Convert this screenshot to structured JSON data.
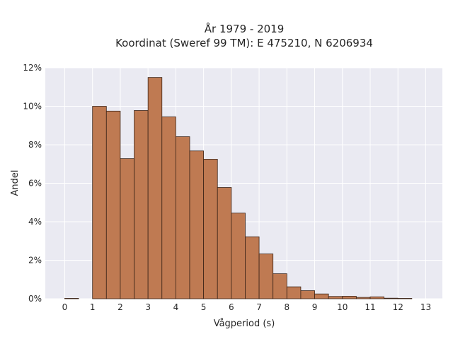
{
  "chart_data": {
    "type": "bar",
    "title": "År 1979 - 2019",
    "subtitle": "Koordinat (Sweref 99 TM): E 475210, N 6206934",
    "xlabel": "Vågperiod (s)",
    "ylabel": "Andel",
    "bin_width": 0.5,
    "bins_start": [
      0,
      0.5,
      1,
      1.5,
      2,
      2.5,
      3,
      3.5,
      4,
      4.5,
      5,
      5.5,
      6,
      6.5,
      7,
      7.5,
      8,
      8.5,
      9,
      9.5,
      10,
      10.5,
      11,
      11.5,
      12
    ],
    "values": [
      0.02,
      0.0,
      10.0,
      9.75,
      7.28,
      9.78,
      11.5,
      9.45,
      8.42,
      7.68,
      7.25,
      5.78,
      4.45,
      3.22,
      2.33,
      1.3,
      0.62,
      0.42,
      0.25,
      0.12,
      0.13,
      0.07,
      0.1,
      0.03,
      0.02
    ],
    "xlim": [
      -0.7,
      13.6
    ],
    "ylim": [
      0,
      12
    ],
    "xticks": [
      0,
      1,
      2,
      3,
      4,
      5,
      6,
      7,
      8,
      9,
      10,
      11,
      12,
      13
    ],
    "yticks": [
      0,
      2,
      4,
      6,
      8,
      10,
      12
    ],
    "ytick_format": "%",
    "bar_color": "#bf7a52",
    "bar_edge_color": "#3b2418",
    "plot_background": "#eaeaf2",
    "grid": true
  }
}
